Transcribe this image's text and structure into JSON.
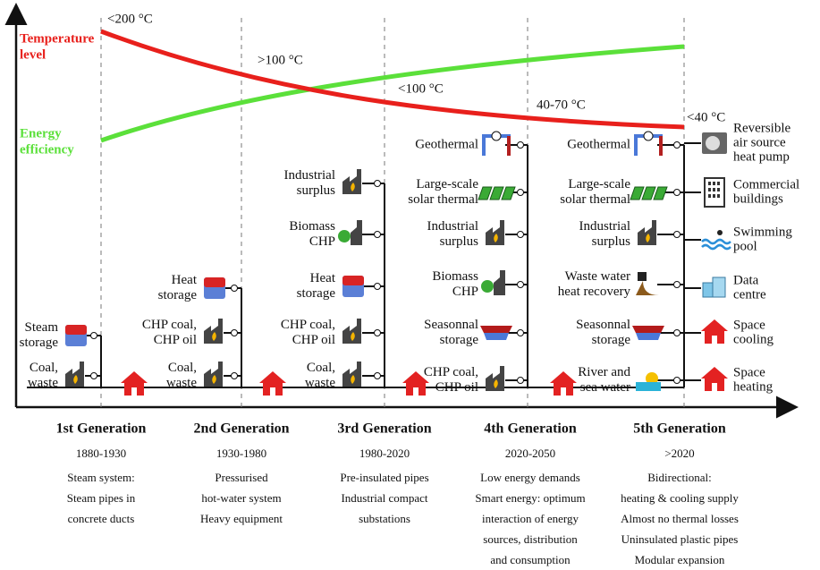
{
  "curves": {
    "temperature": {
      "label": [
        "Temperature",
        "level"
      ]
    },
    "efficiency": {
      "label": [
        "Energy",
        "efficiency"
      ]
    }
  },
  "temperatures": [
    "<200 °C",
    ">100 °C",
    "<100 °C",
    "40-70 °C",
    "<40 °C"
  ],
  "generations": [
    {
      "title": "1st Generation",
      "years": "1880-1930",
      "description": [
        "Steam system:",
        "Steam pipes in",
        "concrete ducts"
      ],
      "sources": [
        {
          "lines": [
            "Steam",
            "storage"
          ]
        },
        {
          "lines": [
            "Coal,",
            "waste"
          ]
        }
      ]
    },
    {
      "title": "2nd Generation",
      "years": "1930-1980",
      "description": [
        "Pressurised",
        "hot-water system",
        "Heavy equipment"
      ],
      "sources": [
        {
          "lines": [
            "Heat",
            "storage"
          ]
        },
        {
          "lines": [
            "CHP coal,",
            "CHP oil"
          ]
        },
        {
          "lines": [
            "Coal,",
            "waste"
          ]
        }
      ]
    },
    {
      "title": "3rd Generation",
      "years": "1980-2020",
      "description": [
        "Pre-insulated pipes",
        "Industrial compact",
        "substations"
      ],
      "sources": [
        {
          "lines": [
            "Industrial",
            "surplus"
          ]
        },
        {
          "lines": [
            "Biomass",
            "CHP"
          ]
        },
        {
          "lines": [
            "Heat",
            "storage"
          ]
        },
        {
          "lines": [
            "CHP coal,",
            "CHP oil"
          ]
        },
        {
          "lines": [
            "Coal,",
            "waste"
          ]
        }
      ]
    },
    {
      "title": "4th Generation",
      "years": "2020-2050",
      "description": [
        "Low energy demands",
        "Smart energy: optimum",
        "interaction of energy",
        "sources, distribution",
        "and consumption"
      ],
      "sources": [
        {
          "lines": [
            "Geothermal"
          ]
        },
        {
          "lines": [
            "Large-scale",
            "solar thermal"
          ]
        },
        {
          "lines": [
            "Industrial",
            "surplus"
          ]
        },
        {
          "lines": [
            "Biomass",
            "CHP"
          ]
        },
        {
          "lines": [
            "Seasonnal",
            "storage"
          ]
        },
        {
          "lines": [
            "CHP coal,",
            "CHP oil"
          ]
        }
      ]
    },
    {
      "title": "5th Generation",
      "years": ">2020",
      "description": [
        "Bidirectional:",
        "heating & cooling supply",
        "Almost no thermal losses",
        "Uninsulated plastic pipes",
        "Modular expansion"
      ],
      "sources": [
        {
          "lines": [
            "Geothermal"
          ]
        },
        {
          "lines": [
            "Large-scale",
            "solar thermal"
          ]
        },
        {
          "lines": [
            "Industrial",
            "surplus"
          ]
        },
        {
          "lines": [
            "Waste water",
            "heat recovery"
          ]
        },
        {
          "lines": [
            "Seasonnal",
            "storage"
          ]
        },
        {
          "lines": [
            "River and",
            "sea water"
          ]
        }
      ]
    }
  ],
  "consumers": [
    {
      "lines": [
        "Reversible",
        "air source",
        "heat pump"
      ]
    },
    {
      "lines": [
        "Commercial",
        "buildings"
      ]
    },
    {
      "lines": [
        "Swimming",
        "pool"
      ]
    },
    {
      "lines": [
        "Data",
        "centre"
      ]
    },
    {
      "lines": [
        "Space",
        "cooling"
      ]
    },
    {
      "lines": [
        "Space",
        "heating"
      ]
    }
  ]
}
